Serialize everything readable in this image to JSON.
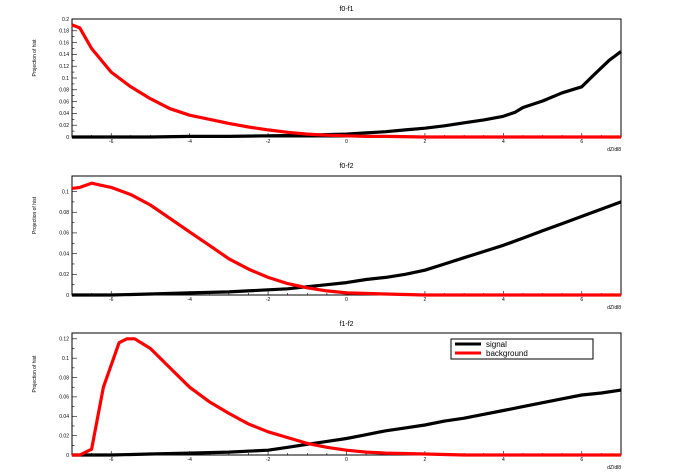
{
  "chart_data": [
    {
      "type": "line",
      "title": "f0-f1",
      "xlabel": "dZ/dl8",
      "ylabel": "Projection of hist",
      "xlim": [
        -7,
        7
      ],
      "ylim": [
        0,
        0.2
      ],
      "xticks": [
        -6,
        -4,
        -2,
        0,
        2,
        4,
        6
      ],
      "yticks": [
        0,
        0.02,
        0.04,
        0.06,
        0.08,
        0.1,
        0.12,
        0.14,
        0.16,
        0.18,
        0.2
      ],
      "ytick_labels": [
        "0",
        "0.02",
        "0.04",
        "0.06",
        "0.08",
        "0.1",
        "0.12",
        "0.14",
        "0.16",
        "0.18",
        "0.2"
      ],
      "series": [
        {
          "name": "signal",
          "color": "#000000",
          "x": [
            -7,
            -6,
            -5,
            -4,
            -3,
            -2,
            -1,
            -0.5,
            0,
            0.5,
            1,
            1.5,
            2,
            2.5,
            3,
            3.5,
            4,
            4.3,
            4.5,
            5,
            5.5,
            6,
            6.3,
            6.7,
            7
          ],
          "y": [
            0,
            0,
            0,
            0.001,
            0.001,
            0.002,
            0.003,
            0.004,
            0.005,
            0.007,
            0.009,
            0.012,
            0.015,
            0.019,
            0.024,
            0.029,
            0.035,
            0.042,
            0.05,
            0.061,
            0.075,
            0.085,
            0.105,
            0.13,
            0.145
          ]
        },
        {
          "name": "background",
          "color": "#ff0000",
          "x": [
            -7,
            -6.8,
            -6.5,
            -6,
            -5.5,
            -5,
            -4.5,
            -4,
            -3.5,
            -3,
            -2.5,
            -2,
            -1.5,
            -1,
            -0.5,
            0,
            0.5,
            1,
            2,
            3,
            4,
            5,
            6,
            7
          ],
          "y": [
            0.19,
            0.185,
            0.15,
            0.11,
            0.085,
            0.065,
            0.048,
            0.037,
            0.03,
            0.023,
            0.017,
            0.012,
            0.008,
            0.005,
            0.003,
            0.002,
            0.001,
            0.001,
            0,
            0,
            0,
            0,
            0,
            0
          ]
        }
      ]
    },
    {
      "type": "line",
      "title": "f0-f2",
      "xlabel": "dZ/dl8",
      "ylabel": "Projection of hist",
      "xlim": [
        -7,
        7
      ],
      "ylim": [
        0,
        0.115
      ],
      "xticks": [
        -6,
        -4,
        -2,
        0,
        2,
        4,
        6
      ],
      "yticks": [
        0,
        0.02,
        0.04,
        0.06,
        0.08,
        0.1
      ],
      "ytick_labels": [
        "0",
        "0.02",
        "0.04",
        "0.06",
        "0.08",
        "0.1"
      ],
      "series": [
        {
          "name": "signal",
          "color": "#000000",
          "x": [
            -7,
            -6,
            -5,
            -4,
            -3,
            -2,
            -1.5,
            -1,
            -0.5,
            0,
            0.5,
            1,
            1.5,
            2,
            2.5,
            3,
            3.5,
            4,
            4.5,
            5,
            5.5,
            6,
            6.5,
            7
          ],
          "y": [
            0,
            0,
            0.001,
            0.002,
            0.003,
            0.005,
            0.006,
            0.008,
            0.01,
            0.012,
            0.015,
            0.017,
            0.02,
            0.024,
            0.03,
            0.036,
            0.042,
            0.048,
            0.055,
            0.062,
            0.069,
            0.076,
            0.083,
            0.09
          ]
        },
        {
          "name": "background",
          "color": "#ff0000",
          "x": [
            -7,
            -6.8,
            -6.5,
            -6,
            -5.5,
            -5,
            -4.5,
            -4,
            -3.5,
            -3,
            -2.5,
            -2,
            -1.5,
            -1,
            -0.5,
            0,
            1,
            2,
            3,
            4,
            5,
            6,
            7
          ],
          "y": [
            0.103,
            0.104,
            0.108,
            0.104,
            0.097,
            0.087,
            0.074,
            0.061,
            0.048,
            0.035,
            0.025,
            0.017,
            0.011,
            0.007,
            0.004,
            0.002,
            0.001,
            0,
            0,
            0,
            0,
            0,
            0
          ]
        }
      ]
    },
    {
      "type": "line",
      "title": "f1-f2",
      "xlabel": "dZ/dl8",
      "ylabel": "Projection of hist",
      "xlim": [
        -7,
        7
      ],
      "ylim": [
        0,
        0.126
      ],
      "xticks": [
        -6,
        -4,
        -2,
        0,
        2,
        4,
        6
      ],
      "yticks": [
        0,
        0.02,
        0.04,
        0.06,
        0.08,
        0.1,
        0.12
      ],
      "ytick_labels": [
        "0",
        "0.02",
        "0.04",
        "0.06",
        "0.08",
        "0.1",
        "0.12"
      ],
      "legend": {
        "position": "top-right",
        "entries": [
          "signal",
          "background"
        ]
      },
      "series": [
        {
          "name": "signal",
          "color": "#000000",
          "x": [
            -7,
            -6,
            -5,
            -4,
            -3,
            -2,
            -1.5,
            -1,
            -0.5,
            0,
            0.5,
            1,
            1.5,
            2,
            2.5,
            3,
            3.5,
            4,
            4.5,
            5,
            5.5,
            6,
            6.5,
            7
          ],
          "y": [
            0,
            0,
            0.001,
            0.002,
            0.003,
            0.005,
            0.008,
            0.011,
            0.014,
            0.017,
            0.021,
            0.025,
            0.028,
            0.031,
            0.035,
            0.038,
            0.042,
            0.046,
            0.05,
            0.054,
            0.058,
            0.062,
            0.064,
            0.067
          ]
        },
        {
          "name": "background",
          "color": "#ff0000",
          "x": [
            -7,
            -6.8,
            -6.5,
            -6.2,
            -5.8,
            -5.6,
            -5.4,
            -5,
            -4.5,
            -4,
            -3.5,
            -3,
            -2.5,
            -2,
            -1.5,
            -1,
            -0.5,
            0,
            0.5,
            1,
            2,
            3,
            4,
            5,
            6,
            7
          ],
          "y": [
            0,
            0,
            0.006,
            0.07,
            0.116,
            0.12,
            0.12,
            0.11,
            0.09,
            0.07,
            0.055,
            0.043,
            0.032,
            0.024,
            0.018,
            0.012,
            0.008,
            0.005,
            0.003,
            0.002,
            0.001,
            0,
            0,
            0,
            0,
            0
          ]
        }
      ]
    }
  ]
}
